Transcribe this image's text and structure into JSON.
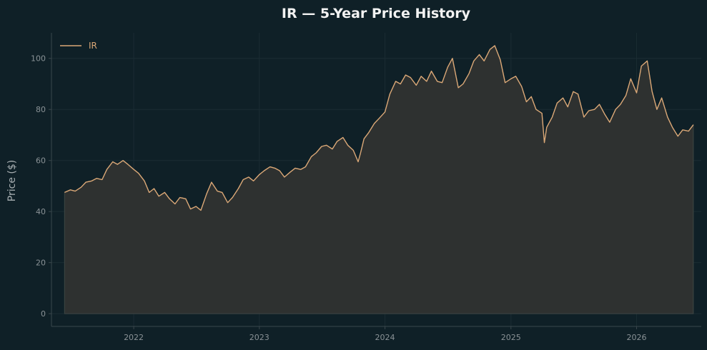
{
  "chart_data": {
    "type": "area",
    "title": "IR — 5-Year Price History",
    "xlabel": "",
    "ylabel": "Price ($)",
    "x_ticks": [
      "2022",
      "2023",
      "2024",
      "2025",
      "2026"
    ],
    "y_ticks": [
      0,
      20,
      40,
      60,
      80,
      100
    ],
    "xlim": [
      "2021-05-07",
      "2026-07-08"
    ],
    "ylim": [
      -5,
      110
    ],
    "grid": true,
    "legend": "top-left",
    "colors": {
      "background": "#0f2027",
      "line": "#dba877",
      "fill": "#2e3130",
      "axis": "#3a474c",
      "grid": "#1b2c33"
    },
    "series": [
      {
        "name": "IR",
        "points": [
          [
            "2021-06-14",
            47.5
          ],
          [
            "2021-07-01",
            48.5
          ],
          [
            "2021-07-15",
            48.0
          ],
          [
            "2021-08-01",
            49.5
          ],
          [
            "2021-08-15",
            51.5
          ],
          [
            "2021-09-01",
            52.0
          ],
          [
            "2021-09-15",
            53.0
          ],
          [
            "2021-10-01",
            52.5
          ],
          [
            "2021-10-15",
            56.5
          ],
          [
            "2021-11-01",
            59.5
          ],
          [
            "2021-11-15",
            58.5
          ],
          [
            "2021-12-01",
            60.0
          ],
          [
            "2021-12-15",
            58.5
          ],
          [
            "2022-01-01",
            56.5
          ],
          [
            "2022-01-15",
            55.0
          ],
          [
            "2022-02-01",
            52.0
          ],
          [
            "2022-02-15",
            47.5
          ],
          [
            "2022-03-01",
            49.0
          ],
          [
            "2022-03-15",
            46.0
          ],
          [
            "2022-04-01",
            47.5
          ],
          [
            "2022-04-15",
            45.0
          ],
          [
            "2022-05-01",
            43.0
          ],
          [
            "2022-05-15",
            45.5
          ],
          [
            "2022-06-01",
            45.0
          ],
          [
            "2022-06-15",
            41.0
          ],
          [
            "2022-07-01",
            42.0
          ],
          [
            "2022-07-15",
            40.5
          ],
          [
            "2022-08-01",
            47.0
          ],
          [
            "2022-08-15",
            51.5
          ],
          [
            "2022-09-01",
            48.0
          ],
          [
            "2022-09-15",
            47.5
          ],
          [
            "2022-10-01",
            43.5
          ],
          [
            "2022-10-15",
            45.5
          ],
          [
            "2022-11-01",
            49.0
          ],
          [
            "2022-11-15",
            52.5
          ],
          [
            "2022-12-01",
            53.5
          ],
          [
            "2022-12-15",
            52.0
          ],
          [
            "2023-01-01",
            54.5
          ],
          [
            "2023-01-15",
            56.0
          ],
          [
            "2023-02-01",
            57.5
          ],
          [
            "2023-02-15",
            57.0
          ],
          [
            "2023-03-01",
            56.0
          ],
          [
            "2023-03-15",
            53.5
          ],
          [
            "2023-04-01",
            55.5
          ],
          [
            "2023-04-15",
            57.0
          ],
          [
            "2023-05-01",
            56.5
          ],
          [
            "2023-05-15",
            57.5
          ],
          [
            "2023-06-01",
            61.5
          ],
          [
            "2023-06-15",
            63.0
          ],
          [
            "2023-07-01",
            65.5
          ],
          [
            "2023-07-15",
            66.0
          ],
          [
            "2023-08-01",
            64.5
          ],
          [
            "2023-08-15",
            67.5
          ],
          [
            "2023-09-01",
            69.0
          ],
          [
            "2023-09-15",
            66.0
          ],
          [
            "2023-10-01",
            64.0
          ],
          [
            "2023-10-15",
            59.5
          ],
          [
            "2023-10-22",
            63.0
          ],
          [
            "2023-11-01",
            68.5
          ],
          [
            "2023-11-15",
            71.0
          ],
          [
            "2023-12-01",
            74.5
          ],
          [
            "2023-12-15",
            76.5
          ],
          [
            "2024-01-01",
            79.0
          ],
          [
            "2024-01-15",
            86.0
          ],
          [
            "2024-02-01",
            91.0
          ],
          [
            "2024-02-15",
            90.0
          ],
          [
            "2024-03-01",
            93.5
          ],
          [
            "2024-03-15",
            92.5
          ],
          [
            "2024-04-01",
            89.5
          ],
          [
            "2024-04-15",
            93.0
          ],
          [
            "2024-05-01",
            91.0
          ],
          [
            "2024-05-15",
            95.0
          ],
          [
            "2024-06-01",
            91.0
          ],
          [
            "2024-06-15",
            90.5
          ],
          [
            "2024-07-01",
            96.5
          ],
          [
            "2024-07-15",
            100.0
          ],
          [
            "2024-08-01",
            88.5
          ],
          [
            "2024-08-15",
            90.0
          ],
          [
            "2024-09-01",
            94.0
          ],
          [
            "2024-09-15",
            99.0
          ],
          [
            "2024-10-01",
            101.5
          ],
          [
            "2024-10-15",
            99.0
          ],
          [
            "2024-11-01",
            103.5
          ],
          [
            "2024-11-15",
            105.0
          ],
          [
            "2024-12-01",
            99.5
          ],
          [
            "2024-12-15",
            90.5
          ],
          [
            "2025-01-01",
            92.0
          ],
          [
            "2025-01-15",
            93.0
          ],
          [
            "2025-02-01",
            89.0
          ],
          [
            "2025-02-15",
            83.0
          ],
          [
            "2025-03-01",
            85.0
          ],
          [
            "2025-03-15",
            80.0
          ],
          [
            "2025-04-01",
            78.5
          ],
          [
            "2025-04-08",
            67.0
          ],
          [
            "2025-04-15",
            73.0
          ],
          [
            "2025-05-01",
            77.0
          ],
          [
            "2025-05-15",
            82.5
          ],
          [
            "2025-06-01",
            84.5
          ],
          [
            "2025-06-15",
            81.0
          ],
          [
            "2025-07-01",
            87.0
          ],
          [
            "2025-07-15",
            86.0
          ],
          [
            "2025-08-01",
            77.0
          ],
          [
            "2025-08-15",
            79.5
          ],
          [
            "2025-09-01",
            80.0
          ],
          [
            "2025-09-15",
            82.0
          ],
          [
            "2025-10-01",
            78.0
          ],
          [
            "2025-10-15",
            75.0
          ],
          [
            "2025-11-01",
            80.0
          ],
          [
            "2025-11-15",
            82.0
          ],
          [
            "2025-12-01",
            85.5
          ],
          [
            "2025-12-15",
            92.0
          ],
          [
            "2026-01-01",
            86.5
          ],
          [
            "2026-01-15",
            97.0
          ],
          [
            "2026-02-01",
            99.0
          ],
          [
            "2026-02-15",
            87.0
          ],
          [
            "2026-03-01",
            80.0
          ],
          [
            "2026-03-15",
            84.5
          ],
          [
            "2026-04-01",
            77.0
          ],
          [
            "2026-04-15",
            73.0
          ],
          [
            "2026-05-01",
            69.5
          ],
          [
            "2026-05-15",
            72.0
          ],
          [
            "2026-06-01",
            71.5
          ],
          [
            "2026-06-15",
            74.0
          ]
        ]
      }
    ]
  }
}
